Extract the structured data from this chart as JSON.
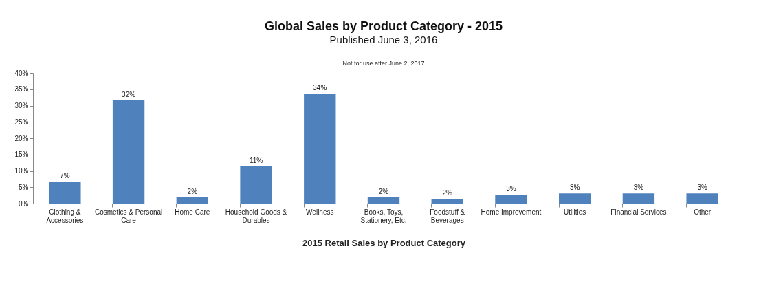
{
  "chart_data": {
    "type": "bar",
    "title": "Global Sales by Product Category - 2015",
    "subtitle": "Published June 3, 2016",
    "annotations": [
      "Not for use after June 2, 2017"
    ],
    "xlabel": "2015 Retail Sales by Product Category",
    "categories": [
      "Clothing & Accessories",
      "Cosmetics & Personal Care",
      "Home Care",
      "Household Goods & Durables",
      "Wellness",
      "Books, Toys, Stationery, Etc.",
      "Foodstuff & Beverages",
      "Home Improvement",
      "Utilities",
      "Financial Services",
      "Other"
    ],
    "values": [
      6.7,
      31.6,
      1.9,
      11.4,
      33.6,
      1.9,
      1.5,
      2.7,
      3.1,
      3.1,
      3.1
    ],
    "value_labels": [
      "7%",
      "32%",
      "2%",
      "11%",
      "34%",
      "2%",
      "2%",
      "3%",
      "3%",
      "3%",
      "3%"
    ],
    "color": "#4f81bd",
    "ylim": [
      0,
      40
    ],
    "yticks": [
      {
        "value": 0,
        "label": "0%"
      },
      {
        "value": 5,
        "label": "5%"
      },
      {
        "value": 10,
        "label": "10%"
      },
      {
        "value": 15,
        "label": "15%"
      },
      {
        "value": 20,
        "label": "20%"
      },
      {
        "value": 25,
        "label": "25%"
      },
      {
        "value": 30,
        "label": "30%"
      },
      {
        "value": 35,
        "label": "35%"
      },
      {
        "value": 40,
        "label": "40%"
      }
    ],
    "grid": false
  }
}
